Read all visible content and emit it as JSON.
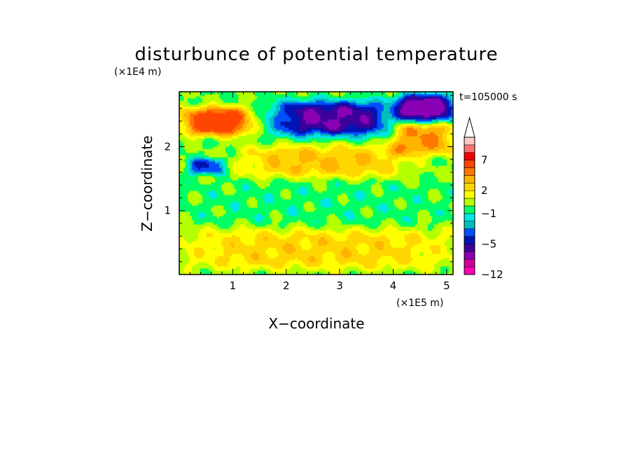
{
  "chart_data": {
    "type": "heatmap",
    "title": "disturbunce of potential temperature",
    "xlabel": "X−coordinate",
    "ylabel": "Z−coordinate",
    "x_scale_label": "(×1E5 m)",
    "y_scale_label": "(×1E4 m)",
    "time_label": "t=105000 s",
    "xlim": [
      0,
      5.12
    ],
    "ylim": [
      0,
      2.86
    ],
    "x_ticks": [
      {
        "value": 1,
        "label": "1"
      },
      {
        "value": 2,
        "label": "2"
      },
      {
        "value": 3,
        "label": "3"
      },
      {
        "value": 4,
        "label": "4"
      },
      {
        "value": 5,
        "label": "5"
      }
    ],
    "y_ticks": [
      {
        "value": 1,
        "label": "1"
      },
      {
        "value": 2,
        "label": "2"
      }
    ],
    "colorbar": {
      "labels": [
        {
          "value": 7,
          "label": "7"
        },
        {
          "value": 2,
          "label": "2"
        },
        {
          "value": -1,
          "label": "−1"
        },
        {
          "value": -5,
          "label": "−5"
        },
        {
          "value": -12,
          "label": "−12"
        }
      ],
      "levels": [
        -12,
        -10,
        -8,
        -6,
        -5,
        -4,
        -3,
        -2,
        -1,
        0,
        1,
        2,
        3,
        4,
        5,
        7,
        9,
        11
      ],
      "colors": [
        "#ff00b4",
        "#d2009b",
        "#8c00b4",
        "#3c009b",
        "#0014b4",
        "#0050ff",
        "#00bebe",
        "#00e6e6",
        "#00ff64",
        "#b4ff00",
        "#ffff00",
        "#ffd700",
        "#ffb400",
        "#ff7800",
        "#ff4600",
        "#f50000",
        "#ff7373",
        "#ffc8c8"
      ],
      "extend_max": true
    },
    "field_features": [
      {
        "name": "lower-warm-layer",
        "x": [
          0,
          5.12
        ],
        "z": [
          0.1,
          0.7
        ],
        "value": 2.5
      },
      {
        "name": "mid-neutral-band",
        "x": [
          0,
          5.12
        ],
        "z": [
          0.75,
          1.45
        ],
        "value": -0.5
      },
      {
        "name": "upper-warm-band",
        "x": [
          1.2,
          4.2
        ],
        "z": [
          1.55,
          2.0
        ],
        "value": 3
      },
      {
        "name": "cold-core-center",
        "x": [
          1.8,
          3.9
        ],
        "z": [
          2.2,
          2.7
        ],
        "value": -6
      },
      {
        "name": "cold-core-right",
        "x": [
          4.1,
          5.1
        ],
        "z": [
          2.4,
          2.8
        ],
        "value": -7
      },
      {
        "name": "warm-core-left",
        "x": [
          0.1,
          1.3
        ],
        "z": [
          2.2,
          2.6
        ],
        "value": 6
      },
      {
        "name": "warm-core-right",
        "x": [
          4.0,
          5.1
        ],
        "z": [
          1.9,
          2.4
        ],
        "value": 4
      },
      {
        "name": "cold-patch-left",
        "x": [
          0.2,
          0.8
        ],
        "z": [
          1.6,
          1.8
        ],
        "value": -4
      }
    ]
  }
}
